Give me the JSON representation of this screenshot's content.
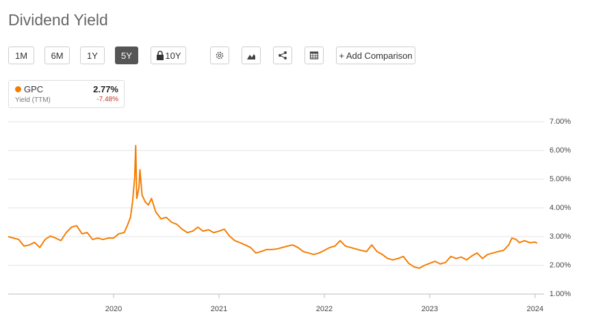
{
  "toolbar": {
    "ranges": [
      "1M",
      "6M",
      "1Y",
      "5Y",
      "10Y"
    ],
    "active_range": 3,
    "comparison": "+ Add Comparison"
  },
  "summary": {
    "ticker_value": "2.77%",
    "metric": "Yield (TTM)",
    "change": "-7.48%"
  },
  "chart_data": {
    "type": "line",
    "title": "Dividend Yield",
    "x": [
      2019.0,
      2019.1,
      2019.15,
      2019.2,
      2019.25,
      2019.3,
      2019.35,
      2019.4,
      2019.45,
      2019.5,
      2019.55,
      2019.6,
      2019.65,
      2019.7,
      2019.75,
      2019.8,
      2019.85,
      2019.9,
      2019.95,
      2020.0,
      2020.05,
      2020.1,
      2020.13,
      2020.16,
      2020.18,
      2020.2,
      2020.21,
      2020.22,
      2020.24,
      2020.25,
      2020.27,
      2020.3,
      2020.33,
      2020.36,
      2020.4,
      2020.45,
      2020.5,
      2020.55,
      2020.6,
      2020.65,
      2020.7,
      2020.75,
      2020.8,
      2020.85,
      2020.9,
      2020.95,
      2021.0,
      2021.05,
      2021.1,
      2021.15,
      2021.2,
      2021.25,
      2021.3,
      2021.35,
      2021.4,
      2021.45,
      2021.5,
      2021.55,
      2021.6,
      2021.65,
      2021.7,
      2021.75,
      2021.8,
      2021.85,
      2021.9,
      2021.95,
      2022.0,
      2022.05,
      2022.1,
      2022.15,
      2022.2,
      2022.25,
      2022.3,
      2022.35,
      2022.4,
      2022.45,
      2022.5,
      2022.55,
      2022.6,
      2022.65,
      2022.7,
      2022.75,
      2022.8,
      2022.85,
      2022.9,
      2022.95,
      2023.0,
      2023.05,
      2023.1,
      2023.15,
      2023.2,
      2023.25,
      2023.3,
      2023.35,
      2023.4,
      2023.45,
      2023.5,
      2023.55,
      2023.6,
      2023.65,
      2023.7,
      2023.75,
      2023.78,
      2023.82,
      2023.85,
      2023.9,
      2023.95,
      2024.0,
      2024.02
    ],
    "series": [
      {
        "name": "GPC",
        "color": "#f57c00",
        "values": [
          3.0,
          2.9,
          2.67,
          2.71,
          2.8,
          2.62,
          2.9,
          3.02,
          2.95,
          2.86,
          3.14,
          3.33,
          3.38,
          3.1,
          3.14,
          2.9,
          2.95,
          2.9,
          2.95,
          2.95,
          3.1,
          3.14,
          3.38,
          3.67,
          4.21,
          5.05,
          6.17,
          4.33,
          4.69,
          5.33,
          4.45,
          4.21,
          4.1,
          4.33,
          3.86,
          3.62,
          3.67,
          3.5,
          3.43,
          3.26,
          3.14,
          3.19,
          3.33,
          3.19,
          3.24,
          3.14,
          3.19,
          3.26,
          3.02,
          2.86,
          2.79,
          2.71,
          2.62,
          2.43,
          2.48,
          2.55,
          2.55,
          2.57,
          2.62,
          2.67,
          2.71,
          2.62,
          2.48,
          2.43,
          2.38,
          2.43,
          2.52,
          2.62,
          2.67,
          2.86,
          2.67,
          2.62,
          2.57,
          2.52,
          2.48,
          2.71,
          2.48,
          2.38,
          2.24,
          2.19,
          2.24,
          2.31,
          2.07,
          1.95,
          1.9,
          2.0,
          2.07,
          2.14,
          2.05,
          2.1,
          2.31,
          2.24,
          2.29,
          2.19,
          2.33,
          2.43,
          2.24,
          2.38,
          2.43,
          2.48,
          2.52,
          2.71,
          2.95,
          2.9,
          2.79,
          2.86,
          2.79,
          2.81,
          2.77
        ]
      }
    ],
    "xlim": [
      2019.0,
      2024.02
    ],
    "xticks": [
      2020,
      2021,
      2022,
      2023,
      2024
    ],
    "ylim": [
      1,
      7
    ],
    "yticks": [
      {
        "value": 1,
        "label": "1.00%"
      },
      {
        "value": 2,
        "label": "2.00%"
      },
      {
        "value": 3,
        "label": "3.00%"
      },
      {
        "value": 4,
        "label": "4.00%"
      },
      {
        "value": 5,
        "label": "5.00%"
      },
      {
        "value": 6,
        "label": "6.00%"
      },
      {
        "value": 7,
        "label": "7.00%"
      }
    ],
    "grid": true
  }
}
